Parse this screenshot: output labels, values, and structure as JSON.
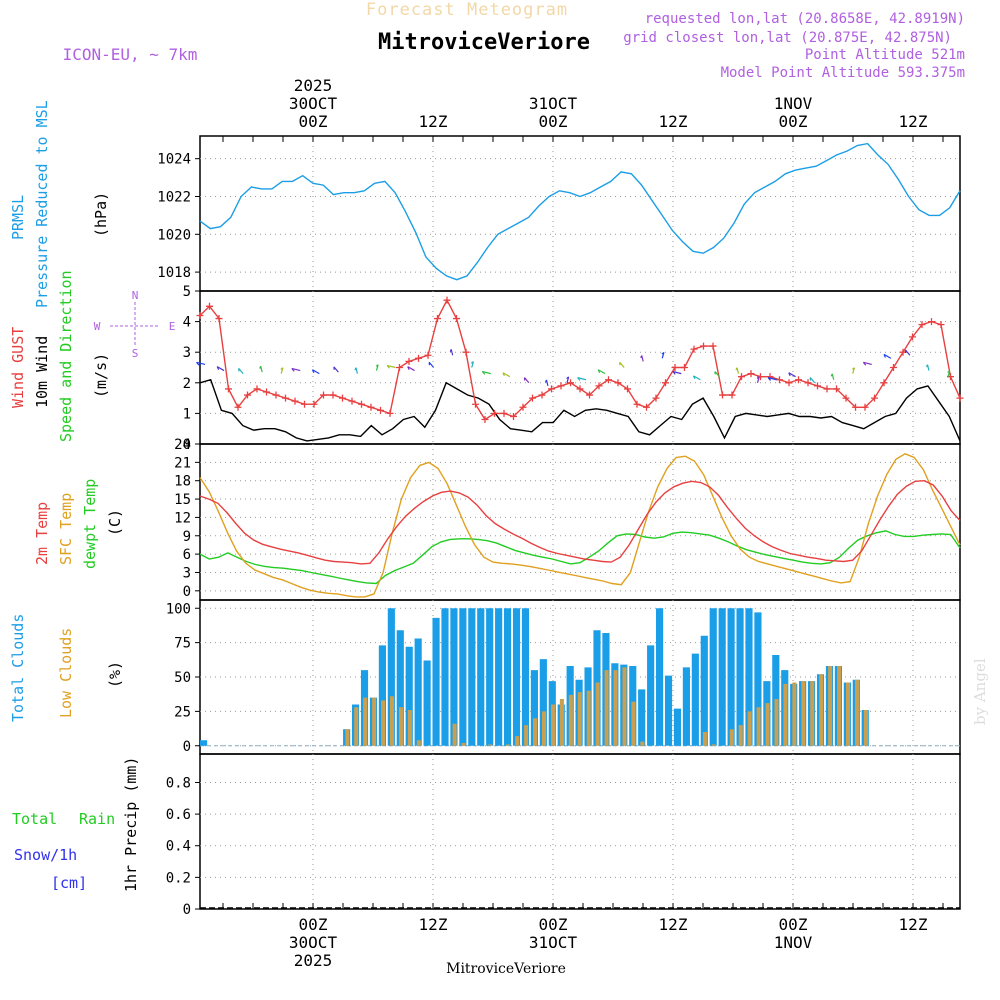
{
  "header": {
    "forecast_label": "Forecast Meteogram",
    "station": "MitroviceVeriore",
    "model": "ICON-EU, ~ 7km",
    "requested": "requested lon,lat (20.8658E, 42.8919N)",
    "closest": "grid closest lon,lat (20.875E, 42.875N)",
    "point_alt": "Point Altitude 521m",
    "model_alt": "Model Point Altitude 593.375m",
    "watermark": "by Angel",
    "footer_station": "MitroviceVeriore"
  },
  "time_axis": {
    "hours_before_start_00z": 9,
    "hour_step": 3,
    "n_hours": 63,
    "major_ticks": [
      {
        "hour": 9,
        "hh": "00Z",
        "date": "30OCT",
        "year": "2025"
      },
      {
        "hour": 21,
        "hh": "12Z",
        "date": "",
        "year": ""
      },
      {
        "hour": 33,
        "hh": "00Z",
        "date": "31OCT",
        "year": ""
      },
      {
        "hour": 45,
        "hh": "12Z",
        "date": "",
        "year": ""
      },
      {
        "hour": 57,
        "hh": "00Z",
        "date": "1NOV",
        "year": ""
      },
      {
        "hour": 69,
        "hh": "12Z",
        "date": "",
        "year": ""
      }
    ]
  },
  "colors": {
    "pressure": "#1c9ee6",
    "gust": "#e84040",
    "wind10": "#000000",
    "green": "#22cc22",
    "sfc": "#e0a020",
    "total_cloud": "#1a9ee8",
    "low_cloud": "#c8a050",
    "purple": "#b060e0",
    "blue": "#3030ee"
  },
  "chart_data": [
    {
      "type": "line",
      "title": "PRMSL Pressure Reduced to MSL",
      "ylabel": "(hPa)",
      "ylim": [
        1017,
        1025.2
      ],
      "yticks": [
        1018,
        1020,
        1022,
        1024
      ],
      "series": [
        {
          "name": "PRMSL",
          "color_key": "pressure",
          "values": [
            1020.7,
            1020.3,
            1020.4,
            1020.9,
            1022.0,
            1022.5,
            1022.4,
            1022.4,
            1022.8,
            1022.8,
            1023.1,
            1022.7,
            1022.6,
            1022.1,
            1022.2,
            1022.2,
            1022.3,
            1022.7,
            1022.8,
            1022.2,
            1021.2,
            1020.1,
            1018.8,
            1018.2,
            1017.8,
            1017.6,
            1017.8,
            1018.5,
            1019.3,
            1020.0,
            1020.3,
            1020.6,
            1020.9,
            1021.5,
            1022.0,
            1022.3,
            1022.2,
            1022.0,
            1022.2,
            1022.5,
            1022.8,
            1023.3,
            1023.2,
            1022.6,
            1021.8,
            1021.0,
            1020.2,
            1019.6,
            1019.1,
            1019.0,
            1019.3,
            1019.8,
            1020.6,
            1021.6,
            1022.2,
            1022.5,
            1022.8,
            1023.2,
            1023.4,
            1023.5,
            1023.6,
            1023.9,
            1024.2,
            1024.4,
            1024.7,
            1024.8,
            1024.2,
            1023.7,
            1022.9,
            1022.0,
            1021.3,
            1021.0,
            1021.0,
            1021.4,
            1022.3
          ]
        }
      ]
    },
    {
      "type": "line",
      "title": "Wind GUST, 10m Wind Speed and Direction",
      "ylabel": "(m/s)",
      "ylim": [
        0,
        5
      ],
      "yticks": [
        0,
        1,
        2,
        3,
        4,
        5
      ],
      "compass": {
        "n": "N",
        "s": "S",
        "w": "W",
        "e": "E"
      },
      "series": [
        {
          "name": "Wind GUST",
          "color_key": "gust",
          "marker": "+",
          "values": [
            4.2,
            4.5,
            4.1,
            1.8,
            1.2,
            1.6,
            1.8,
            1.7,
            1.6,
            1.5,
            1.4,
            1.3,
            1.3,
            1.6,
            1.6,
            1.5,
            1.4,
            1.3,
            1.2,
            1.1,
            1.0,
            2.5,
            2.7,
            2.8,
            2.9,
            4.1,
            4.7,
            4.1,
            3.0,
            1.3,
            0.8,
            1.0,
            1.0,
            0.9,
            1.2,
            1.5,
            1.6,
            1.8,
            1.9,
            2.0,
            1.8,
            1.6,
            1.9,
            2.1,
            2.0,
            1.8,
            1.3,
            1.2,
            1.5,
            2.0,
            2.5,
            2.5,
            3.1,
            3.2,
            3.2,
            1.6,
            1.6,
            2.2,
            2.3,
            2.2,
            2.2,
            2.1,
            2.0,
            2.1,
            2.0,
            1.9,
            1.8,
            1.8,
            1.5,
            1.2,
            1.2,
            1.5,
            2.0,
            2.5,
            3.0,
            3.5,
            3.9,
            4.0,
            3.9,
            2.2,
            1.5
          ]
        },
        {
          "name": "10m Wind",
          "color_key": "wind10",
          "values": [
            2.0,
            2.1,
            1.1,
            1.0,
            0.6,
            0.45,
            0.5,
            0.5,
            0.4,
            0.2,
            0.1,
            0.15,
            0.2,
            0.3,
            0.3,
            0.25,
            0.6,
            0.3,
            0.5,
            0.8,
            0.9,
            0.55,
            1.1,
            2.0,
            1.8,
            1.6,
            1.5,
            1.3,
            0.8,
            0.5,
            0.45,
            0.4,
            0.7,
            0.7,
            1.1,
            0.9,
            1.1,
            1.15,
            1.1,
            1.0,
            0.9,
            0.4,
            0.3,
            0.6,
            0.9,
            0.8,
            1.3,
            1.5,
            0.9,
            0.2,
            0.9,
            1.0,
            0.95,
            0.9,
            0.95,
            1.0,
            0.9,
            0.9,
            0.85,
            0.9,
            0.7,
            0.6,
            0.5,
            0.7,
            0.9,
            1.0,
            1.5,
            1.8,
            1.9,
            1.4,
            0.9,
            0.1
          ]
        },
        {
          "name": "Wind Direction Arrows",
          "color_key": "blue",
          "values": [
            2.6,
            2.4,
            2.3,
            2.35,
            2.3,
            2.4,
            2.3,
            2.35,
            2.3,
            2.4,
            2.5,
            2.4,
            2.5,
            2.9,
            2.5,
            2.3,
            2.2,
            2.0,
            1.9,
            2.0,
            2.1,
            2.3,
            2.5,
            2.7,
            2.8,
            2.3,
            2.1,
            2.2,
            2.3,
            2.0,
            2.1,
            2.2,
            2.0,
            2.1,
            2.3,
            2.6,
            2.8,
            2.9,
            2.4,
            2.2
          ]
        }
      ]
    },
    {
      "type": "line",
      "title": "2m Temp, SFC Temp, dewpt Temp",
      "ylabel": "(C)",
      "ylim": [
        -1.5,
        24
      ],
      "yticks": [
        0,
        3,
        6,
        9,
        12,
        15,
        18,
        21,
        24
      ],
      "series": [
        {
          "name": "2m Temp",
          "color_key": "gust",
          "values": [
            15.5,
            15.0,
            14.3,
            12.8,
            11.0,
            9.4,
            8.3,
            7.6,
            7.2,
            6.8,
            6.5,
            6.2,
            5.8,
            5.4,
            5.0,
            4.8,
            4.7,
            4.6,
            4.4,
            4.5,
            6.2,
            8.5,
            10.5,
            12.2,
            13.5,
            14.6,
            15.5,
            16.1,
            16.3,
            16.0,
            15.3,
            14.0,
            12.3,
            11.0,
            10.1,
            9.3,
            8.6,
            7.8,
            7.1,
            6.5,
            6.1,
            5.8,
            5.5,
            5.2,
            5.0,
            4.8,
            4.7,
            5.5,
            7.5,
            10.0,
            12.5,
            14.5,
            16.0,
            17.0,
            17.6,
            17.9,
            17.7,
            17.0,
            15.6,
            13.6,
            11.8,
            10.2,
            9.0,
            8.0,
            7.2,
            6.6,
            6.1,
            5.8,
            5.5,
            5.3,
            5.0,
            4.9,
            4.8,
            5.0,
            6.5,
            9.0,
            11.5,
            13.8,
            15.8,
            17.1,
            17.9,
            18.0,
            17.3,
            15.5,
            13.1,
            11.5
          ]
        },
        {
          "name": "SFC Temp",
          "color_key": "sfc",
          "values": [
            18.5,
            16.2,
            13.0,
            9.5,
            6.5,
            4.5,
            3.4,
            2.8,
            2.2,
            1.8,
            1.2,
            0.6,
            0.1,
            -0.2,
            -0.4,
            -0.5,
            -0.8,
            -1.0,
            -1.0,
            -0.5,
            3.0,
            9.5,
            15.0,
            18.5,
            20.5,
            21.0,
            20.0,
            17.5,
            14.0,
            10.5,
            7.5,
            5.5,
            4.7,
            4.5,
            4.4,
            4.2,
            4.0,
            3.7,
            3.4,
            3.1,
            2.8,
            2.5,
            2.2,
            1.9,
            1.6,
            1.2,
            1.0,
            3.0,
            8.0,
            13.0,
            17.0,
            20.0,
            21.8,
            22.0,
            21.2,
            19.0,
            15.5,
            12.0,
            9.0,
            6.8,
            5.5,
            4.8,
            4.4,
            4.0,
            3.6,
            3.2,
            2.8,
            2.4,
            2.0,
            1.6,
            1.3,
            1.5,
            5.5,
            11.0,
            15.5,
            19.0,
            21.5,
            22.4,
            21.8,
            19.8,
            16.5,
            13.5,
            10.5,
            7.5
          ]
        },
        {
          "name": "dewpt Temp",
          "color_key": "green",
          "values": [
            6.0,
            5.2,
            5.5,
            6.2,
            5.5,
            4.8,
            4.3,
            4.0,
            3.8,
            3.7,
            3.5,
            3.3,
            3.0,
            2.7,
            2.4,
            2.1,
            1.8,
            1.5,
            1.3,
            1.2,
            2.5,
            3.3,
            3.9,
            4.5,
            5.8,
            7.2,
            8.0,
            8.4,
            8.5,
            8.5,
            8.4,
            8.2,
            7.8,
            7.2,
            6.6,
            6.2,
            5.8,
            5.5,
            5.2,
            4.8,
            4.4,
            4.6,
            5.5,
            6.5,
            7.8,
            9.0,
            9.3,
            9.2,
            8.8,
            8.6,
            8.8,
            9.4,
            9.6,
            9.5,
            9.3,
            9.1,
            8.6,
            8.0,
            7.3,
            6.7,
            6.3,
            5.9,
            5.6,
            5.3,
            5.0,
            4.7,
            4.5,
            4.4,
            4.6,
            5.5,
            7.0,
            8.3,
            9.0,
            9.5,
            9.8,
            9.2,
            8.9,
            8.9,
            9.1,
            9.2,
            9.3,
            9.2,
            7.0
          ]
        }
      ]
    },
    {
      "type": "bar",
      "title": "Total Clouds, Low Clouds",
      "ylabel": "(%)",
      "ylim": [
        -6,
        106
      ],
      "yticks": [
        0,
        25,
        50,
        75,
        100
      ],
      "series": [
        {
          "name": "Total Clouds",
          "color_key": "total_cloud",
          "values": [
            4,
            0,
            0,
            0,
            0,
            0,
            0,
            0,
            0,
            0,
            0,
            0,
            0,
            0,
            0,
            0,
            12,
            30,
            55,
            35,
            73,
            100,
            84,
            72,
            78,
            62,
            93,
            100,
            100,
            100,
            100,
            100,
            100,
            100,
            100,
            100,
            100,
            55,
            63,
            47,
            30,
            58,
            48,
            57,
            84,
            82,
            60,
            59,
            58,
            41,
            73,
            100,
            51,
            27,
            57,
            67,
            80,
            100,
            100,
            100,
            100,
            100,
            97,
            47,
            66,
            55,
            45,
            47,
            47,
            52,
            58,
            58,
            46,
            48,
            26,
            0,
            0,
            0,
            0,
            0,
            0,
            0,
            0,
            0,
            0
          ]
        },
        {
          "name": "Low Clouds",
          "color_key": "low_cloud",
          "values": [
            0,
            0,
            0,
            0,
            0,
            0,
            0,
            0,
            0,
            0,
            0,
            0,
            0,
            0,
            0,
            0,
            12,
            28,
            35,
            35,
            33,
            36,
            28,
            26,
            4,
            0,
            0,
            0,
            16,
            2,
            0,
            0,
            1,
            0,
            1,
            7,
            15,
            20,
            25,
            30,
            34,
            37,
            39,
            40,
            46,
            55,
            55,
            57,
            32,
            3,
            0,
            0,
            0,
            0,
            0,
            0,
            10,
            1,
            0,
            12,
            15,
            25,
            28,
            31,
            34,
            45,
            46,
            47,
            47,
            52,
            58,
            58,
            46,
            48,
            26,
            0,
            0,
            0,
            0,
            0,
            0,
            0,
            0,
            0,
            0
          ]
        }
      ]
    },
    {
      "type": "bar",
      "title": "1hr Precip (mm)",
      "ylabel": "1hr Precip (mm)",
      "left_labels": {
        "total": "Total",
        "rain": "Rain",
        "snow": "Snow/1h",
        "cm": "[cm]"
      },
      "ylim": [
        0,
        0.98
      ],
      "yticks": [
        0,
        0.2,
        0.4,
        0.6,
        0.8
      ],
      "ytick_labels": [
        "0",
        "0.2",
        "0.4",
        "0.6",
        "0.8"
      ],
      "series": [
        {
          "name": "Total",
          "color_key": "green",
          "values": []
        },
        {
          "name": "Rain",
          "color_key": "green",
          "values": []
        },
        {
          "name": "Snow/1h",
          "color_key": "blue",
          "values": []
        }
      ]
    }
  ],
  "panel_labels": {
    "p0": [
      "PRMSL",
      "Pressure Reduced to MSL"
    ],
    "p1": [
      "Wind GUST",
      "10m Wind",
      "Speed and Direction"
    ],
    "p2": [
      "2m Temp",
      "SFC Temp",
      "dewpt Temp"
    ],
    "p3": [
      "Total Clouds",
      "Low Clouds"
    ]
  }
}
